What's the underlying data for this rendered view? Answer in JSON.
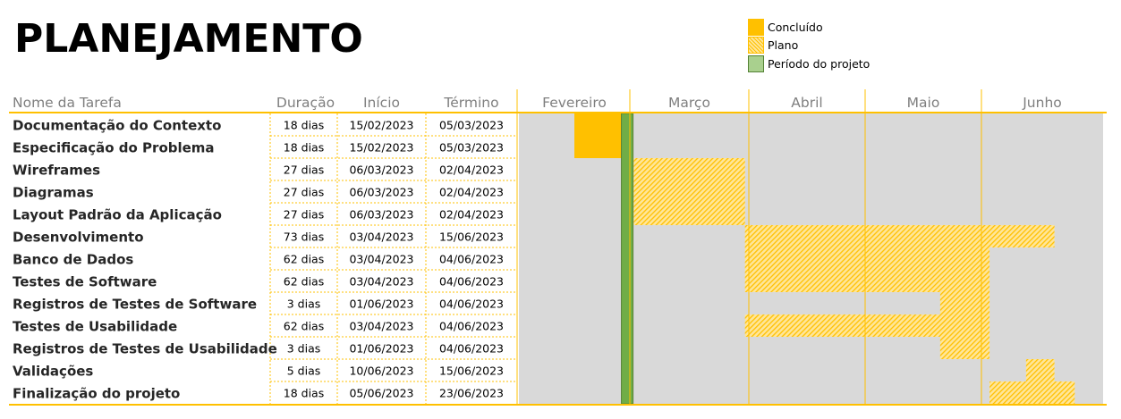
{
  "title": "PLANEJAMENTO",
  "legend": [
    {
      "label": "Concluído",
      "style": "done"
    },
    {
      "label": "Plano",
      "style": "plan"
    },
    {
      "label": "Período do projeto",
      "style": "period"
    }
  ],
  "chart_data": {
    "type": "gantt",
    "columns": {
      "task": "Nome da Tarefa",
      "duration": "Duração",
      "start": "Início",
      "end": "Término"
    },
    "months": [
      "Fevereiro",
      "Março",
      "Abril",
      "Maio",
      "Junho"
    ],
    "current_period": "2023-02-28",
    "tasks": [
      {
        "name": "Documentação do Contexto",
        "duration": "18 dias",
        "start": "15/02/2023",
        "end": "05/03/2023",
        "status": "done",
        "bar_start": "2023-02-15",
        "bar_end": "2023-03-01"
      },
      {
        "name": "Especificação do Problema",
        "duration": "18 dias",
        "start": "15/02/2023",
        "end": "05/03/2023",
        "status": "done",
        "bar_start": "2023-02-15",
        "bar_end": "2023-03-01"
      },
      {
        "name": "Wireframes",
        "duration": "27 dias",
        "start": "06/03/2023",
        "end": "02/04/2023",
        "status": "plan",
        "bar_start": "2023-03-02",
        "bar_end": "2023-03-31"
      },
      {
        "name": "Diagramas",
        "duration": "27 dias",
        "start": "06/03/2023",
        "end": "02/04/2023",
        "status": "plan",
        "bar_start": "2023-03-02",
        "bar_end": "2023-03-31"
      },
      {
        "name": "Layout Padrão da Aplicação",
        "duration": "27 dias",
        "start": "06/03/2023",
        "end": "02/04/2023",
        "status": "plan",
        "bar_start": "2023-03-02",
        "bar_end": "2023-03-31"
      },
      {
        "name": "Desenvolvimento",
        "duration": "73 dias",
        "start": "03/04/2023",
        "end": "15/06/2023",
        "status": "plan",
        "bar_start": "2023-03-31",
        "bar_end": "2023-06-19"
      },
      {
        "name": "Banco de Dados",
        "duration": "62 dias",
        "start": "03/04/2023",
        "end": "04/06/2023",
        "status": "plan",
        "bar_start": "2023-03-31",
        "bar_end": "2023-06-03"
      },
      {
        "name": "Testes de Software",
        "duration": "62 dias",
        "start": "03/04/2023",
        "end": "04/06/2023",
        "status": "plan",
        "bar_start": "2023-03-31",
        "bar_end": "2023-06-03"
      },
      {
        "name": "Registros de Testes de Software",
        "duration": "3 dias",
        "start": "01/06/2023",
        "end": "04/06/2023",
        "status": "plan",
        "bar_start": "2023-05-21",
        "bar_end": "2023-06-03"
      },
      {
        "name": "Testes de Usabilidade",
        "duration": "62 dias",
        "start": "03/04/2023",
        "end": "04/06/2023",
        "status": "plan",
        "bar_start": "2023-03-31",
        "bar_end": "2023-06-03"
      },
      {
        "name": "Registros de Testes de Usabilidade",
        "duration": "3 dias",
        "start": "01/06/2023",
        "end": "04/06/2023",
        "status": "plan",
        "bar_start": "2023-05-21",
        "bar_end": "2023-06-03"
      },
      {
        "name": "Validações",
        "duration": "5 dias",
        "start": "10/06/2023",
        "end": "15/06/2023",
        "status": "plan",
        "bar_start": "2023-06-12",
        "bar_end": "2023-06-19"
      },
      {
        "name": "Finalização do projeto",
        "duration": "18 dias",
        "start": "05/06/2023",
        "end": "23/06/2023",
        "status": "plan",
        "bar_start": "2023-06-03",
        "bar_end": "2023-06-24"
      }
    ]
  },
  "colors": {
    "done": "#ffc000",
    "plan_stripe": "#ffc000",
    "plan_bg": "#ffe699",
    "period_fill": "#70ad47",
    "period_border": "#548235",
    "row_bg": "#d9d9d9",
    "accent_line": "#ffc000"
  }
}
